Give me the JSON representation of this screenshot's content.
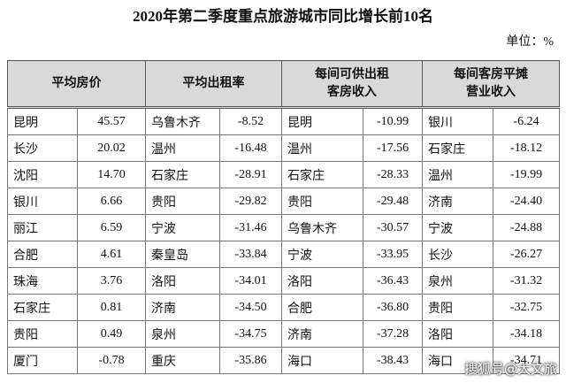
{
  "title": "2020年第二季度重点旅游城市同比增长前10名",
  "unit": "单位：%",
  "table": {
    "headers": [
      [
        "平均房价"
      ],
      [
        "平均出租率"
      ],
      [
        "每间可供出租",
        "客房收入"
      ],
      [
        "每间客房平摊",
        "营业收入"
      ]
    ],
    "rows": [
      [
        "昆明",
        "45.57",
        "乌鲁木齐",
        "-8.52",
        "昆明",
        "-10.99",
        "银川",
        "-6.24"
      ],
      [
        "长沙",
        "20.02",
        "温州",
        "-16.48",
        "温州",
        "-17.56",
        "石家庄",
        "-18.12"
      ],
      [
        "沈阳",
        "14.70",
        "石家庄",
        "-28.91",
        "石家庄",
        "-28.33",
        "温州",
        "-19.99"
      ],
      [
        "银川",
        "6.66",
        "贵阳",
        "-29.82",
        "贵阳",
        "-29.48",
        "济南",
        "-24.40"
      ],
      [
        "丽江",
        "6.59",
        "宁波",
        "-31.46",
        "乌鲁木齐",
        "-30.57",
        "宁波",
        "-24.88"
      ],
      [
        "合肥",
        "4.61",
        "秦皇岛",
        "-33.84",
        "宁波",
        "-33.95",
        "长沙",
        "-26.27"
      ],
      [
        "珠海",
        "3.76",
        "洛阳",
        "-34.01",
        "洛阳",
        "-36.43",
        "泉州",
        "-31.32"
      ],
      [
        "石家庄",
        "0.81",
        "济南",
        "-34.50",
        "合肥",
        "-36.80",
        "贵阳",
        "-32.75"
      ],
      [
        "贵阳",
        "0.49",
        "泉州",
        "-34.75",
        "济南",
        "-37.28",
        "洛阳",
        "-34.18"
      ],
      [
        "厦门",
        "-0.78",
        "重庆",
        "-35.86",
        "海口",
        "-38.43",
        "海口",
        "-34.71"
      ]
    ]
  },
  "watermark": "搜狐号@大文旅"
}
